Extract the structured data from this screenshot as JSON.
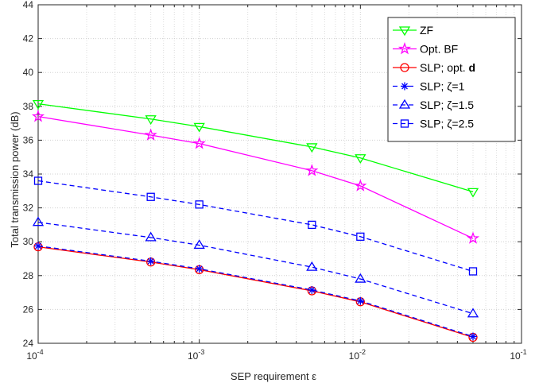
{
  "chart_data": {
    "type": "line",
    "title": "",
    "xlabel": "SEP requirement ε",
    "ylabel": "Total transmission power (dB)",
    "xscale": "log",
    "xlim": [
      0.0001,
      0.1
    ],
    "ylim": [
      24,
      44
    ],
    "grid": "on (major and minor)",
    "legend_position": "top-right",
    "x_tick_labels": [
      {
        "base": "10",
        "exp": "-4"
      },
      {
        "base": "10",
        "exp": "-3"
      },
      {
        "base": "10",
        "exp": "-2"
      },
      {
        "base": "10",
        "exp": "-1"
      }
    ],
    "y_tick_labels": [
      "24",
      "26",
      "28",
      "30",
      "32",
      "34",
      "36",
      "38",
      "40",
      "42",
      "44"
    ],
    "x": [
      0.0001,
      0.0005,
      0.001,
      0.005,
      0.01,
      0.05
    ],
    "series": [
      {
        "name": "ZF",
        "color": "#00ff00",
        "dash": "solid",
        "marker": "triangle-down",
        "values": [
          38.15,
          37.25,
          36.8,
          35.6,
          34.95,
          32.95
        ]
      },
      {
        "name": "Opt. BF",
        "color": "#ff00ff",
        "dash": "solid",
        "marker": "pentagram",
        "values": [
          37.4,
          36.3,
          35.8,
          34.2,
          33.3,
          30.2
        ]
      },
      {
        "name": "SLP; opt. d",
        "name_main": "SLP; opt. ",
        "name_bold": "d",
        "color": "#ff0000",
        "dash": "solid",
        "marker": "circle",
        "values": [
          29.7,
          28.8,
          28.35,
          27.1,
          26.45,
          24.35
        ]
      },
      {
        "name": "SLP; ζ=1",
        "color": "#0000ff",
        "dash": "dashed",
        "marker": "asterisk",
        "values": [
          29.75,
          28.85,
          28.4,
          27.15,
          26.5,
          24.4
        ]
      },
      {
        "name": "SLP; ζ=1.5",
        "color": "#0000ff",
        "dash": "dashed",
        "marker": "triangle-up",
        "values": [
          31.15,
          30.25,
          29.8,
          28.5,
          27.8,
          25.75
        ]
      },
      {
        "name": "SLP; ζ=2.5",
        "color": "#0000ff",
        "dash": "dashed",
        "marker": "square",
        "values": [
          33.6,
          32.65,
          32.2,
          31.0,
          30.3,
          28.25
        ]
      }
    ]
  }
}
